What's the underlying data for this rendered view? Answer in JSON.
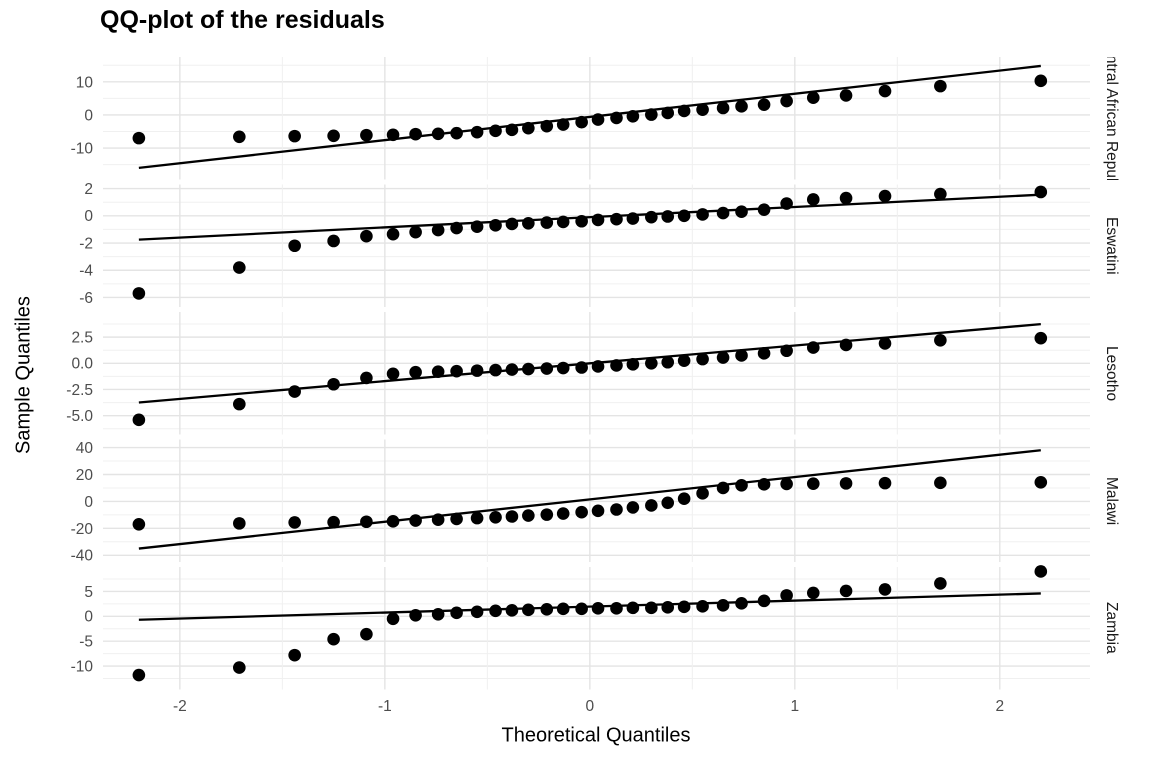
{
  "title": "QQ-plot of the residuals",
  "x_axis_title": "Theoretical Quantiles",
  "y_axis_title": "Sample Quantiles",
  "colors": {
    "point": "#000000",
    "qq_line": "#000000",
    "grid_major": "#e4e4e4",
    "grid_minor": "#f0f0f0",
    "axis_text": "#4d4d4d",
    "strip_text": "#1a1a1a",
    "background": "#ffffff"
  },
  "chart_data": {
    "type": "scatter",
    "subtype": "qq-plot",
    "title": "QQ-plot of the residuals",
    "xlabel": "Theoretical Quantiles",
    "ylabel": "Sample Quantiles",
    "grid": true,
    "legend": false,
    "facet_strip_position": "right",
    "xlim": [
      -2.375,
      2.44
    ],
    "x_tick_values": [
      -2,
      -1,
      0,
      1,
      2
    ],
    "x_tick_labels": [
      "-2",
      "-1",
      "0",
      "1",
      "2"
    ],
    "x_minor_values": [
      -1.5,
      -0.5,
      0.5,
      1.5
    ],
    "theoretical_quantiles": [
      -2.2,
      -1.71,
      -1.44,
      -1.25,
      -1.09,
      -0.96,
      -0.85,
      -0.74,
      -0.65,
      -0.55,
      -0.46,
      -0.38,
      -0.3,
      -0.21,
      -0.13,
      -0.04,
      0.04,
      0.13,
      0.21,
      0.3,
      0.38,
      0.46,
      0.55,
      0.65,
      0.74,
      0.85,
      0.96,
      1.09,
      1.25,
      1.44,
      1.71,
      2.2
    ],
    "facets": [
      {
        "label": "Central African Republic",
        "ylim": [
          -19.5,
          17.5
        ],
        "y_tick_values": [
          10,
          0,
          -10
        ],
        "y_tick_labels": [
          "10",
          "0",
          "-10"
        ],
        "y_minor_values": [
          15,
          5,
          -5,
          -15
        ],
        "sample_quantiles": [
          -7.0,
          -6.6,
          -6.4,
          -6.3,
          -6.1,
          -6.0,
          -5.8,
          -5.7,
          -5.5,
          -5.2,
          -4.8,
          -4.5,
          -4.0,
          -3.4,
          -2.9,
          -2.2,
          -1.4,
          -0.9,
          -0.4,
          0.1,
          0.6,
          1.2,
          1.6,
          2.1,
          2.6,
          3.1,
          4.2,
          5.2,
          5.9,
          7.2,
          8.7,
          10.3
        ],
        "qq_line": {
          "intercept": -0.6,
          "slope": 7.0
        }
      },
      {
        "label": "Eswatini",
        "ylim": [
          -6.7,
          2.3
        ],
        "y_tick_values": [
          2,
          0,
          -2,
          -4,
          -6
        ],
        "y_tick_labels": [
          "2",
          "0",
          "-2",
          "-4",
          "-6"
        ],
        "y_minor_values": [
          1,
          -1,
          -3,
          -5
        ],
        "sample_quantiles": [
          -5.7,
          -3.8,
          -2.2,
          -1.85,
          -1.5,
          -1.35,
          -1.2,
          -1.05,
          -0.9,
          -0.8,
          -0.7,
          -0.6,
          -0.55,
          -0.5,
          -0.45,
          -0.4,
          -0.3,
          -0.25,
          -0.2,
          -0.1,
          -0.05,
          0.0,
          0.1,
          0.2,
          0.3,
          0.45,
          0.9,
          1.2,
          1.3,
          1.45,
          1.6,
          1.75
        ],
        "qq_line": {
          "intercept": -0.1,
          "slope": 0.75
        }
      },
      {
        "label": "Lesotho",
        "ylim": [
          -6.8,
          4.9
        ],
        "y_tick_values": [
          2.5,
          0,
          -2.5,
          -5
        ],
        "y_tick_labels": [
          "2.5",
          "0.0",
          "-2.5",
          "-5.0"
        ],
        "y_minor_values": [
          3.75,
          1.25,
          -1.25,
          -3.75,
          -6.25
        ],
        "sample_quantiles": [
          -5.4,
          -3.9,
          -2.7,
          -2.0,
          -1.4,
          -1.0,
          -0.85,
          -0.8,
          -0.75,
          -0.7,
          -0.65,
          -0.6,
          -0.55,
          -0.5,
          -0.45,
          -0.4,
          -0.3,
          -0.2,
          -0.1,
          0.0,
          0.1,
          0.25,
          0.4,
          0.55,
          0.75,
          0.95,
          1.2,
          1.5,
          1.75,
          1.9,
          2.2,
          2.4
        ],
        "qq_line": {
          "intercept": 0.0,
          "slope": 1.7
        }
      },
      {
        "label": "Malawi",
        "ylim": [
          -45,
          46
        ],
        "y_tick_values": [
          40,
          20,
          0,
          -20,
          -40
        ],
        "y_tick_labels": [
          "40",
          "20",
          "0",
          "-20",
          "-40"
        ],
        "y_minor_values": [
          30,
          10,
          -10,
          -30
        ],
        "sample_quantiles": [
          -17,
          -16.3,
          -15.6,
          -15.4,
          -15.1,
          -14.8,
          -14.2,
          -13.6,
          -13,
          -12.4,
          -11.8,
          -11.2,
          -10.5,
          -9.8,
          -9,
          -8,
          -7,
          -6,
          -4.5,
          -3,
          -1,
          2,
          6,
          10,
          12,
          12.7,
          13,
          13.2,
          13.4,
          13.6,
          13.8,
          14.2
        ],
        "qq_line": {
          "intercept": 1.5,
          "slope": 16.6
        }
      },
      {
        "label": "Zambia",
        "ylim": [
          -14.7,
          9.9
        ],
        "y_tick_values": [
          5,
          0,
          -5,
          -10
        ],
        "y_tick_labels": [
          "5",
          "0",
          "-5",
          "-10"
        ],
        "y_minor_values": [
          7.5,
          2.5,
          -2.5,
          -7.5,
          -12.5
        ],
        "sample_quantiles": [
          -11.8,
          -10.3,
          -7.8,
          -4.6,
          -3.6,
          -0.5,
          0.2,
          0.4,
          0.7,
          0.9,
          1.1,
          1.2,
          1.3,
          1.4,
          1.5,
          1.5,
          1.6,
          1.6,
          1.7,
          1.7,
          1.8,
          1.9,
          2.0,
          2.2,
          2.6,
          3.1,
          4.2,
          4.7,
          5.1,
          5.4,
          6.6,
          9.0
        ],
        "qq_line": {
          "intercept": 1.95,
          "slope": 1.2
        }
      }
    ]
  }
}
